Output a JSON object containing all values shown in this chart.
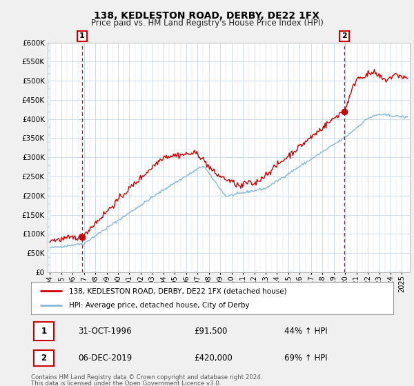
{
  "title": "138, KEDLESTON ROAD, DERBY, DE22 1FX",
  "subtitle": "Price paid vs. HM Land Registry's House Price Index (HPI)",
  "title_fontsize": 10,
  "subtitle_fontsize": 8.5,
  "hpi_color": "#85b8d8",
  "price_color": "#cc0000",
  "vline_color": "#cc0000",
  "ylim": [
    0,
    600000
  ],
  "yticks": [
    0,
    50000,
    100000,
    150000,
    200000,
    250000,
    300000,
    350000,
    400000,
    450000,
    500000,
    550000,
    600000
  ],
  "sale1_date": 1996.83,
  "sale1_price": 91500,
  "sale1_label": "1",
  "sale1_text": "31-OCT-1996",
  "sale1_price_text": "£91,500",
  "sale1_hpi_text": "44% ↑ HPI",
  "sale2_date": 2019.92,
  "sale2_price": 420000,
  "sale2_label": "2",
  "sale2_text": "06-DEC-2019",
  "sale2_price_text": "£420,000",
  "sale2_hpi_text": "69% ↑ HPI",
  "legend_label1": "138, KEDLESTON ROAD, DERBY, DE22 1FX (detached house)",
  "legend_label2": "HPI: Average price, detached house, City of Derby",
  "footer1": "Contains HM Land Registry data © Crown copyright and database right 2024.",
  "footer2": "This data is licensed under the Open Government Licence v3.0.",
  "bg_color": "#f0f0f0",
  "plot_bg_color": "#ffffff",
  "grid_color": "#c8d8e8",
  "hatch_color": "#e0e0e0"
}
